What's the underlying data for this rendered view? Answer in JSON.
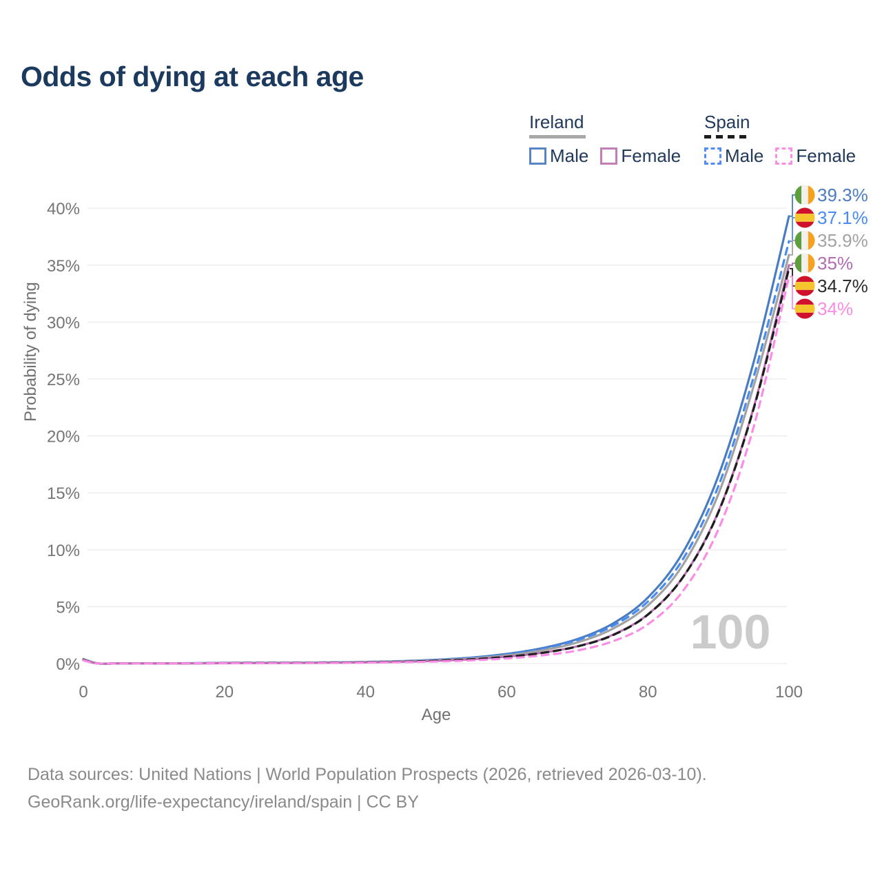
{
  "title": "Odds of dying at each age",
  "watermark": "100",
  "legend": {
    "ireland": {
      "label": "Ireland",
      "male": "Male",
      "female": "Female",
      "underline_color": "#a8a8a8",
      "underline_style": "solid",
      "male_color": "#5585c5",
      "female_color": "#c27fb5"
    },
    "spain": {
      "label": "Spain",
      "male": "Male",
      "female": "Female",
      "underline_color": "#1d1d1d",
      "underline_style": "dashed",
      "male_color": "#4d8df5",
      "female_color": "#fb8ee6"
    }
  },
  "footer": {
    "line1": "Data sources: United Nations | World Population Prospects (2026, retrieved 2026-03-10).",
    "line2": "GeoRank.org/life-expectancy/ireland/spain | CC BY"
  },
  "chart_data": {
    "type": "line",
    "title": "Odds of dying at each age",
    "xlabel": "Age",
    "ylabel": "Probability of dying",
    "xlim": [
      0,
      100
    ],
    "ylim": [
      0,
      40
    ],
    "xticks": [
      0,
      20,
      40,
      60,
      80,
      100
    ],
    "yticks": [
      0,
      5,
      10,
      15,
      20,
      25,
      30,
      35,
      40
    ],
    "ytick_suffix": "%",
    "grid": "horizontal",
    "gridline_color": "#e9e9e9",
    "tick_color": "#757575",
    "watermark_color": "#cbcbcb",
    "legend_position": "top-right",
    "x": [
      0,
      2,
      5,
      10,
      15,
      20,
      25,
      30,
      35,
      40,
      45,
      50,
      55,
      60,
      65,
      70,
      75,
      80,
      85,
      90,
      95,
      100
    ],
    "series": [
      {
        "name": "Ireland Male",
        "country": "ireland",
        "sex": "male",
        "dash": "solid",
        "color": "#4b7cc1",
        "label_color": "#4b7cc1",
        "end_label": "39.3%",
        "end_value": 39.3,
        "values": [
          0.4,
          0.02,
          0.01,
          0.01,
          0.03,
          0.06,
          0.07,
          0.08,
          0.1,
          0.14,
          0.21,
          0.33,
          0.52,
          0.85,
          1.35,
          2.15,
          3.5,
          5.8,
          9.8,
          16.5,
          26.5,
          39.3
        ]
      },
      {
        "name": "Spain Male",
        "country": "spain",
        "sex": "male",
        "dash": "dashed",
        "color": "#478bee",
        "label_color": "#478bee",
        "end_label": "37.1%",
        "end_value": 37.1,
        "values": [
          0.35,
          0.02,
          0.01,
          0.01,
          0.03,
          0.06,
          0.07,
          0.08,
          0.1,
          0.13,
          0.2,
          0.31,
          0.49,
          0.8,
          1.28,
          2.05,
          3.3,
          5.45,
          9.2,
          15.6,
          25.2,
          37.1
        ]
      },
      {
        "name": "Ireland Both sexes",
        "country": "ireland",
        "sex": "both",
        "dash": "solid",
        "color": "#a2a2a2",
        "label_color": "#a3a3a3",
        "end_label": "35.9%",
        "end_value": 35.9,
        "values": [
          0.37,
          0.02,
          0.01,
          0.01,
          0.02,
          0.05,
          0.06,
          0.07,
          0.08,
          0.12,
          0.18,
          0.28,
          0.44,
          0.72,
          1.15,
          1.85,
          3.05,
          5.1,
          8.7,
          14.9,
          24.4,
          35.9
        ]
      },
      {
        "name": "Ireland Female",
        "country": "ireland",
        "sex": "female",
        "dash": "solid",
        "color": "#ba72b2",
        "label_color": "#b36cb3",
        "end_label": "35%",
        "end_value": 35.0,
        "values": [
          0.33,
          0.015,
          0.01,
          0.01,
          0.02,
          0.03,
          0.04,
          0.05,
          0.07,
          0.1,
          0.15,
          0.24,
          0.38,
          0.61,
          0.95,
          1.52,
          2.52,
          4.32,
          7.62,
          13.35,
          22.5,
          35.0
        ]
      },
      {
        "name": "Spain Both sexes",
        "country": "spain",
        "sex": "both",
        "dash": "dashed",
        "color": "#1f1f1f",
        "label_color": "#2b2b2b",
        "end_label": "34.7%",
        "end_value": 34.7,
        "values": [
          0.31,
          0.015,
          0.01,
          0.01,
          0.02,
          0.04,
          0.05,
          0.06,
          0.07,
          0.1,
          0.15,
          0.24,
          0.37,
          0.59,
          0.93,
          1.5,
          2.48,
          4.3,
          7.6,
          13.3,
          22.4,
          34.7
        ]
      },
      {
        "name": "Spain Female",
        "country": "spain",
        "sex": "female",
        "dash": "dashed",
        "color": "#fb8ce6",
        "label_color": "#f98ce2",
        "end_label": "34%",
        "end_value": 34.0,
        "values": [
          0.28,
          0.01,
          0.01,
          0.01,
          0.02,
          0.03,
          0.03,
          0.04,
          0.05,
          0.08,
          0.12,
          0.18,
          0.28,
          0.45,
          0.72,
          1.15,
          1.95,
          3.45,
          6.4,
          11.8,
          20.8,
          34.0
        ]
      }
    ],
    "flag_colors": {
      "ireland": {
        "green": "#5f9e3c",
        "white": "#f1f0ec",
        "orange": "#f6a11f"
      },
      "spain": {
        "red": "#d0112b",
        "yellow": "#f6c52e"
      }
    }
  }
}
